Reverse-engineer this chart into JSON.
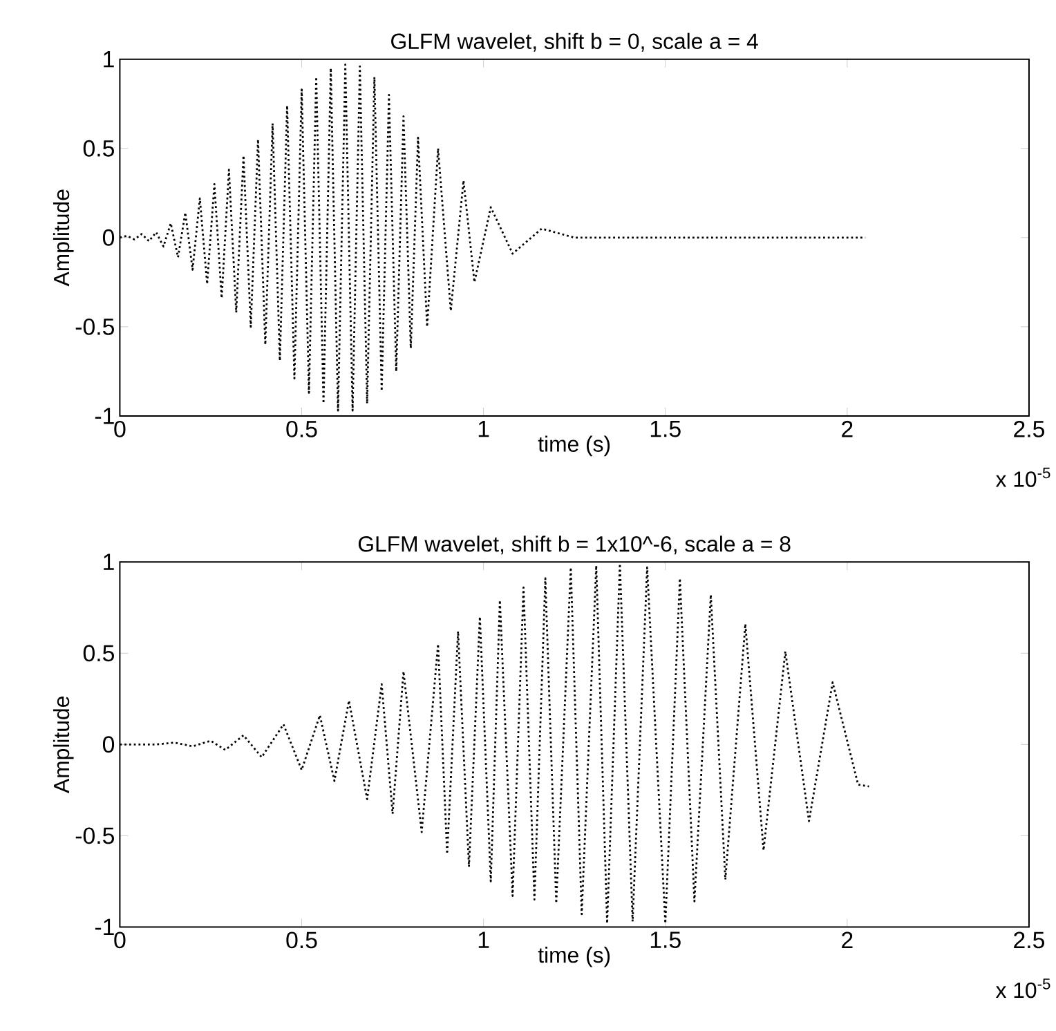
{
  "chart_data": [
    {
      "type": "line",
      "title": "GLFM wavelet, shift b = 0, scale a = 4",
      "xlabel": "time (s)",
      "ylabel": "Amplitude",
      "annotations": [
        "x 10$^{-5}$"
      ],
      "line_style": "dotted",
      "xlim": [
        0,
        2.5
      ],
      "ylim": [
        -1,
        1
      ],
      "xticks": [
        0,
        0.5,
        1,
        1.5,
        2,
        2.5
      ],
      "yticks": [
        -1,
        -0.5,
        0,
        0.5,
        1
      ],
      "x": [
        0,
        0.02,
        0.04,
        0.06,
        0.08,
        0.1,
        0.12,
        0.14,
        0.16,
        0.18,
        0.2,
        0.22,
        0.24,
        0.26,
        0.28,
        0.3,
        0.32,
        0.34,
        0.36,
        0.38,
        0.4,
        0.42,
        0.44,
        0.46,
        0.48,
        0.5,
        0.52,
        0.54,
        0.56,
        0.58,
        0.6,
        0.62,
        0.64,
        0.66,
        0.68,
        0.7,
        0.72,
        0.74,
        0.76,
        0.78,
        0.8,
        0.82,
        0.845,
        0.875,
        0.91,
        0.945,
        0.975,
        1.02,
        1.08,
        1.16,
        1.25,
        1.6,
        2.05
      ],
      "series": [
        {
          "color": "#000000",
          "values": [
            0,
            0.01,
            -0.01,
            0.02,
            -0.02,
            0.03,
            -0.05,
            0.08,
            -0.11,
            0.14,
            -0.18,
            0.22,
            -0.26,
            0.3,
            -0.34,
            0.38,
            -0.42,
            0.46,
            -0.5,
            0.55,
            -0.6,
            0.64,
            -0.69,
            0.74,
            -0.79,
            0.83,
            -0.87,
            0.9,
            -0.93,
            0.95,
            -0.97,
            0.97,
            -0.97,
            0.96,
            -0.93,
            0.9,
            -0.86,
            0.8,
            -0.75,
            0.68,
            -0.62,
            0.56,
            -0.5,
            0.5,
            -0.41,
            0.32,
            -0.25,
            0.17,
            -0.09,
            0.05,
            0,
            0,
            0
          ]
        }
      ]
    },
    {
      "type": "line",
      "title": "GLFM wavelet, shift b = 1x10^-6, scale a = 8",
      "xlabel": "time (s)",
      "ylabel": "Amplitude",
      "annotations": [
        "x 10$^{-5}$"
      ],
      "line_style": "dotted",
      "xlim": [
        0,
        2.5
      ],
      "ylim": [
        -1,
        1
      ],
      "xticks": [
        0,
        0.5,
        1,
        1.5,
        2,
        2.5
      ],
      "yticks": [
        -1,
        -0.5,
        0,
        0.5,
        1
      ],
      "x": [
        0,
        0.1,
        0.15,
        0.2,
        0.25,
        0.29,
        0.34,
        0.39,
        0.45,
        0.5,
        0.55,
        0.59,
        0.63,
        0.68,
        0.72,
        0.75,
        0.78,
        0.83,
        0.875,
        0.9,
        0.93,
        0.96,
        0.99,
        1.02,
        1.045,
        1.08,
        1.11,
        1.14,
        1.17,
        1.2,
        1.24,
        1.27,
        1.31,
        1.34,
        1.375,
        1.41,
        1.45,
        1.5,
        1.54,
        1.58,
        1.625,
        1.665,
        1.72,
        1.77,
        1.83,
        1.895,
        1.96,
        2.03,
        2.06
      ],
      "series": [
        {
          "color": "#000000",
          "values": [
            0,
            0,
            0.01,
            -0.01,
            0.02,
            -0.03,
            0.05,
            -0.07,
            0.11,
            -0.14,
            0.16,
            -0.2,
            0.24,
            -0.3,
            0.33,
            -0.38,
            0.4,
            -0.48,
            0.55,
            -0.6,
            0.62,
            -0.67,
            0.7,
            -0.75,
            0.79,
            -0.83,
            0.86,
            -0.85,
            0.91,
            -0.87,
            0.97,
            -0.93,
            0.98,
            -0.98,
            0.99,
            -0.97,
            0.97,
            -0.98,
            0.91,
            -0.86,
            0.82,
            -0.74,
            0.66,
            -0.58,
            0.51,
            -0.42,
            0.34,
            -0.22,
            -0.23
          ]
        }
      ]
    }
  ]
}
